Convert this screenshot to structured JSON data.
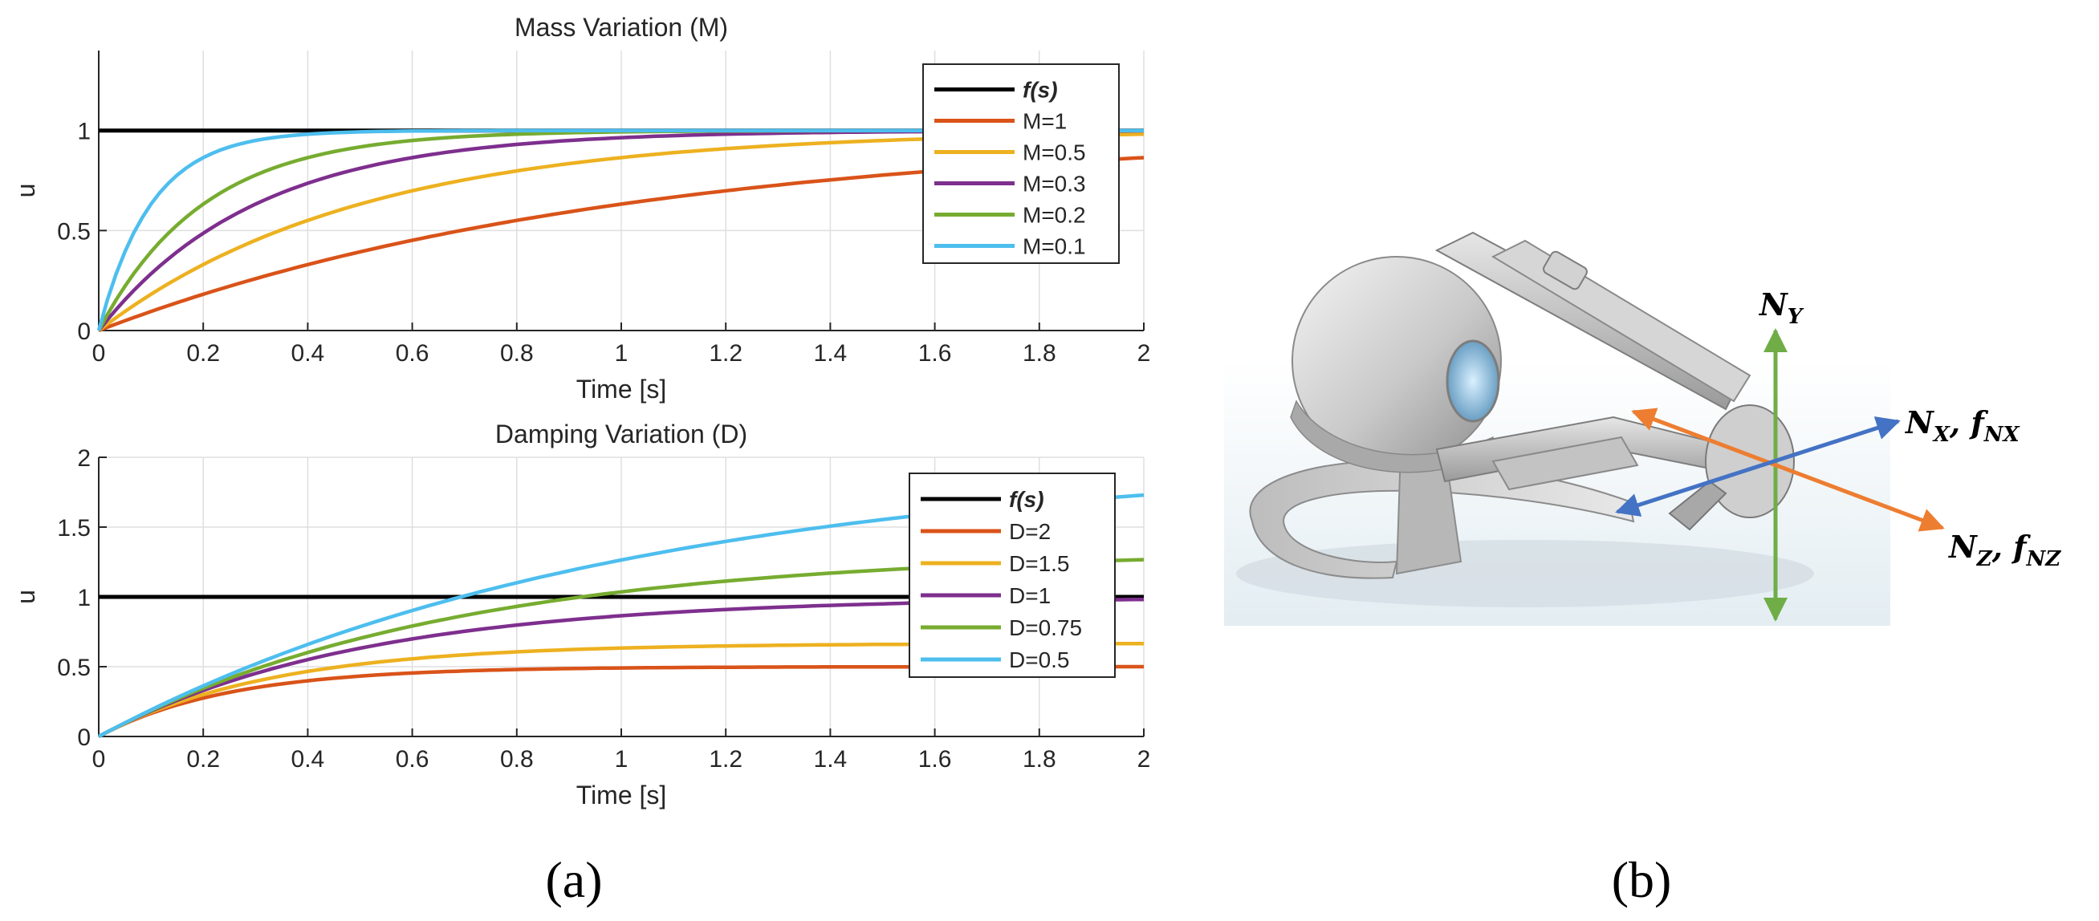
{
  "figure": {
    "panel_a_label": "(a)",
    "panel_b_label": "(b)"
  },
  "chart_data": [
    {
      "type": "line",
      "title": "Mass Variation (M)",
      "xlabel": "Time [s]",
      "ylabel": "u",
      "xlim": [
        0,
        2
      ],
      "ylim": [
        0,
        1.4
      ],
      "xticks": [
        0,
        0.2,
        0.4,
        0.6,
        0.8,
        1,
        1.2,
        1.4,
        1.6,
        1.8,
        2
      ],
      "yticks": [
        0,
        0.5,
        1
      ],
      "grid": true,
      "legend_position": "top-right",
      "model": "first-order step response u(t) = K(1 - exp(-t/tau)), tau = M/D",
      "series": [
        {
          "name": "f(s)",
          "color": "#000000",
          "kind": "constant",
          "value": 1
        },
        {
          "name": "M=1",
          "color": "#D95319",
          "kind": "step",
          "gain": 1,
          "tau": 1
        },
        {
          "name": "M=0.5",
          "color": "#EDB120",
          "kind": "step",
          "gain": 1,
          "tau": 0.5
        },
        {
          "name": "M=0.3",
          "color": "#7E2F8E",
          "kind": "step",
          "gain": 1,
          "tau": 0.3
        },
        {
          "name": "M=0.2",
          "color": "#77AC30",
          "kind": "step",
          "gain": 1,
          "tau": 0.2
        },
        {
          "name": "M=0.1",
          "color": "#4DBEEE",
          "kind": "step",
          "gain": 1,
          "tau": 0.1
        }
      ]
    },
    {
      "type": "line",
      "title": "Damping Variation (D)",
      "xlabel": "Time [s]",
      "ylabel": "u",
      "xlim": [
        0,
        2
      ],
      "ylim": [
        0,
        2
      ],
      "xticks": [
        0,
        0.2,
        0.4,
        0.6,
        0.8,
        1,
        1.2,
        1.4,
        1.6,
        1.8,
        2
      ],
      "yticks": [
        0,
        0.5,
        1,
        1.5,
        2
      ],
      "grid": true,
      "legend_position": "top-right",
      "model": "first-order step response u(t) = (1/D)(1 - exp(-t*D/M)), M = 0.5",
      "series": [
        {
          "name": "f(s)",
          "color": "#000000",
          "kind": "constant",
          "value": 1
        },
        {
          "name": "D=2",
          "color": "#D95319",
          "kind": "step",
          "gain": 0.5,
          "tau": 0.25
        },
        {
          "name": "D=1.5",
          "color": "#EDB120",
          "kind": "step",
          "gain": 0.6667,
          "tau": 0.3333
        },
        {
          "name": "D=1",
          "color": "#7E2F8E",
          "kind": "step",
          "gain": 1,
          "tau": 0.5
        },
        {
          "name": "D=0.75",
          "color": "#77AC30",
          "kind": "step",
          "gain": 1.3333,
          "tau": 0.6667
        },
        {
          "name": "D=0.5",
          "color": "#4DBEEE",
          "kind": "step",
          "gain": 2,
          "tau": 1
        }
      ]
    }
  ],
  "device": {
    "name": "haptic-device",
    "axis_labels": {
      "y": "N_Y",
      "x": "N_X, f_NX",
      "z": "N_Z, f_NZ"
    },
    "axis_colors": {
      "y": "#70AD47",
      "x": "#4472C4",
      "z": "#ED7D31"
    }
  }
}
